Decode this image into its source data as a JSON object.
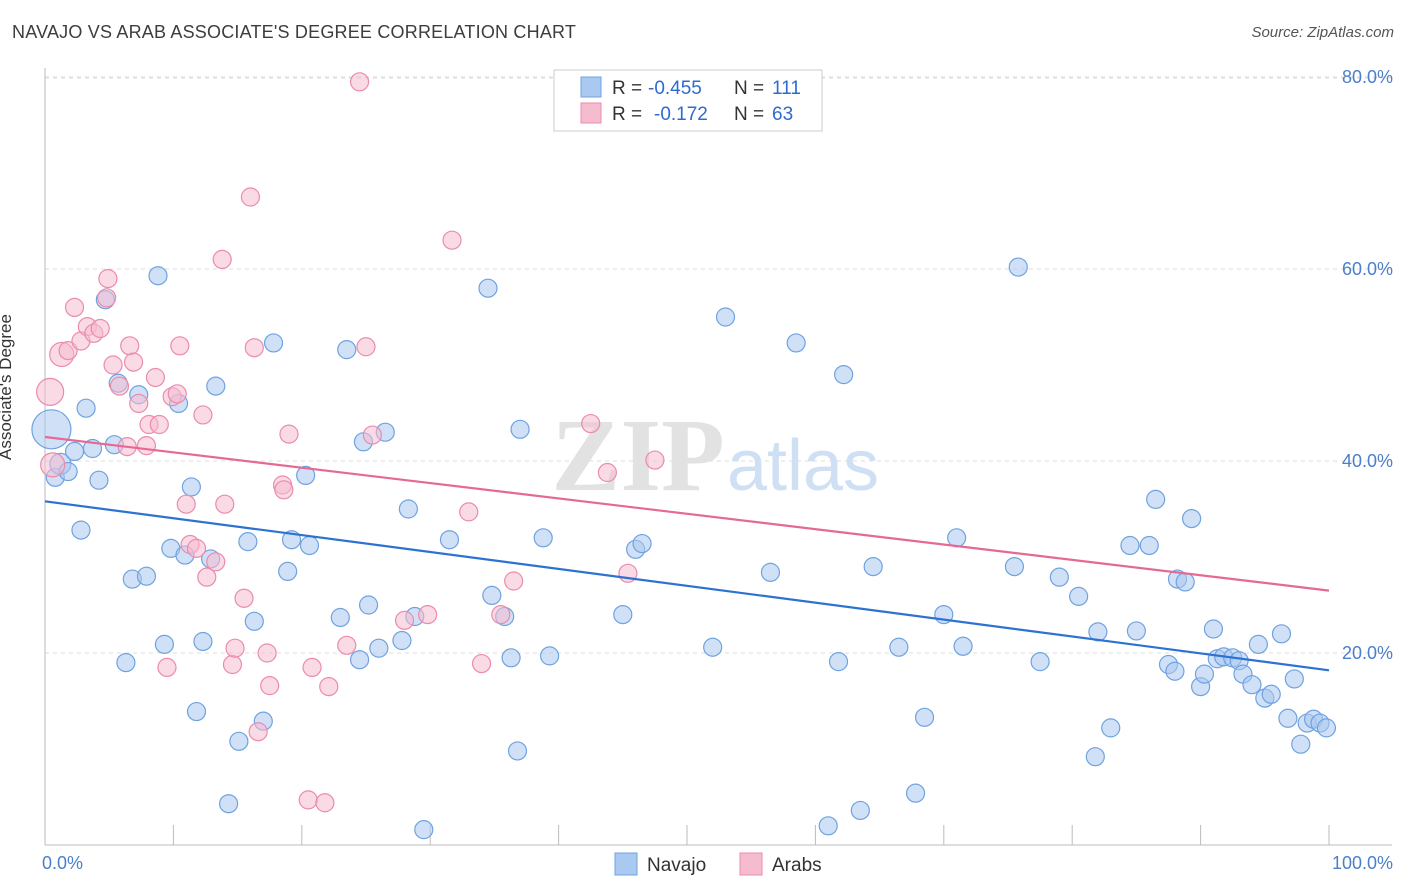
{
  "title": "NAVAJO VS ARAB ASSOCIATE'S DEGREE CORRELATION CHART",
  "source": "Source: ZipAtlas.com",
  "watermark": {
    "zip": "ZIP",
    "atlas": "atlas"
  },
  "colors": {
    "navajo_fill": "#a9c9f1",
    "navajo_stroke": "#6fa2e0",
    "navajo_line": "#2d72d2",
    "arab_fill": "#f5bcd0",
    "arab_stroke": "#eb8bad",
    "arab_line": "#e46a94",
    "axis_text": "#4a7fcb",
    "grid": "#dddddd"
  },
  "legend": {
    "rows": [
      {
        "r_label": "R = ",
        "r_value": "-0.455",
        "n_label": "N = ",
        "n_value": "111"
      },
      {
        "r_label": "R = ",
        "r_value": "-0.172",
        "n_label": "N = ",
        "n_value": "63"
      }
    ]
  },
  "bottom_legend": [
    "Navajo",
    "Arabs"
  ],
  "chart_data": {
    "type": "scatter",
    "title": "NAVAJO VS ARAB ASSOCIATE'S DEGREE CORRELATION CHART",
    "xlabel": "",
    "ylabel": "Associate's Degree",
    "xlim": [
      0,
      100
    ],
    "ylim": [
      0,
      83
    ],
    "x_tick_labels": [
      "0.0%",
      "100.0%"
    ],
    "y_ticks": [
      20,
      40,
      60,
      80
    ],
    "y_tick_labels": [
      "20.0%",
      "40.0%",
      "60.0%",
      "80.0%"
    ],
    "grid": true,
    "series": [
      {
        "name": "Navajo",
        "trend": {
          "x": [
            0,
            100
          ],
          "y": [
            35.8,
            18.2
          ]
        },
        "points": [
          [
            0.5,
            43.3,
            26
          ],
          [
            0.8,
            38.3,
            12
          ],
          [
            1.2,
            39.7,
            14
          ],
          [
            1.8,
            38.9,
            12
          ],
          [
            2.3,
            41.0,
            12
          ],
          [
            2.8,
            32.8,
            12
          ],
          [
            3.2,
            45.5,
            12
          ],
          [
            3.7,
            41.3,
            12
          ],
          [
            4.2,
            38.0,
            12
          ],
          [
            4.7,
            56.8,
            12
          ],
          [
            5.4,
            41.7,
            12
          ],
          [
            5.7,
            48.1,
            12
          ],
          [
            6.3,
            19.0,
            12
          ],
          [
            6.8,
            27.7,
            12
          ],
          [
            7.3,
            46.9,
            12
          ],
          [
            7.9,
            28.0,
            12
          ],
          [
            8.8,
            59.3,
            12
          ],
          [
            9.3,
            20.9,
            12
          ],
          [
            9.8,
            30.9,
            12
          ],
          [
            10.4,
            46.0,
            12
          ],
          [
            10.9,
            30.2,
            12
          ],
          [
            11.4,
            37.3,
            12
          ],
          [
            11.8,
            13.9,
            12
          ],
          [
            12.3,
            21.2,
            12
          ],
          [
            12.9,
            29.8,
            12
          ],
          [
            13.3,
            47.8,
            12
          ],
          [
            14.3,
            4.3,
            12
          ],
          [
            15.1,
            10.8,
            12
          ],
          [
            15.8,
            31.6,
            12
          ],
          [
            16.3,
            23.3,
            12
          ],
          [
            17.0,
            12.9,
            12
          ],
          [
            17.8,
            52.3,
            12
          ],
          [
            18.9,
            28.5,
            12
          ],
          [
            19.2,
            31.8,
            12
          ],
          [
            20.3,
            38.5,
            12
          ],
          [
            20.6,
            31.2,
            12
          ],
          [
            23.0,
            23.7,
            12
          ],
          [
            23.5,
            51.6,
            12
          ],
          [
            24.5,
            19.3,
            12
          ],
          [
            24.8,
            42.0,
            12
          ],
          [
            25.2,
            25.0,
            12
          ],
          [
            26.0,
            20.5,
            12
          ],
          [
            26.5,
            43.0,
            12
          ],
          [
            27.8,
            21.3,
            12
          ],
          [
            28.3,
            35.0,
            12
          ],
          [
            28.8,
            23.8,
            12
          ],
          [
            29.5,
            1.6,
            12
          ],
          [
            31.5,
            31.8,
            12
          ],
          [
            34.5,
            58.0,
            12
          ],
          [
            34.8,
            26.0,
            12
          ],
          [
            35.8,
            23.8,
            12
          ],
          [
            36.3,
            19.5,
            12
          ],
          [
            36.8,
            9.8,
            12
          ],
          [
            37.0,
            43.3,
            12
          ],
          [
            38.8,
            32.0,
            12
          ],
          [
            39.3,
            19.7,
            12
          ],
          [
            45.0,
            24.0,
            12
          ],
          [
            46.0,
            30.8,
            12
          ],
          [
            46.5,
            31.4,
            12
          ],
          [
            52.0,
            20.6,
            12
          ],
          [
            53.0,
            55.0,
            12
          ],
          [
            56.5,
            28.4,
            12
          ],
          [
            58.5,
            52.3,
            12
          ],
          [
            61.0,
            2.0,
            12
          ],
          [
            61.8,
            19.1,
            12
          ],
          [
            62.2,
            49.0,
            12
          ],
          [
            63.5,
            3.6,
            12
          ],
          [
            64.5,
            29.0,
            12
          ],
          [
            66.5,
            20.6,
            12
          ],
          [
            67.8,
            5.4,
            12
          ],
          [
            68.5,
            13.3,
            12
          ],
          [
            70.0,
            24.0,
            12
          ],
          [
            71.0,
            32.0,
            12
          ],
          [
            71.5,
            20.7,
            12
          ],
          [
            75.5,
            29.0,
            12
          ],
          [
            75.8,
            60.2,
            12
          ],
          [
            77.5,
            19.1,
            12
          ],
          [
            79.0,
            27.9,
            12
          ],
          [
            80.5,
            25.9,
            12
          ],
          [
            81.8,
            9.2,
            12
          ],
          [
            82.0,
            22.2,
            12
          ],
          [
            83.0,
            12.2,
            12
          ],
          [
            84.5,
            31.2,
            12
          ],
          [
            85.0,
            22.3,
            12
          ],
          [
            86.0,
            31.2,
            12
          ],
          [
            86.5,
            36.0,
            12
          ],
          [
            87.5,
            18.8,
            12
          ],
          [
            88.0,
            18.1,
            12
          ],
          [
            88.2,
            27.7,
            12
          ],
          [
            88.8,
            27.4,
            12
          ],
          [
            89.3,
            34.0,
            12
          ],
          [
            90.0,
            16.5,
            12
          ],
          [
            90.3,
            17.8,
            12
          ],
          [
            91.0,
            22.5,
            12
          ],
          [
            91.3,
            19.4,
            12
          ],
          [
            91.8,
            19.6,
            12
          ],
          [
            92.5,
            19.5,
            12
          ],
          [
            93.0,
            19.2,
            12
          ],
          [
            93.3,
            17.8,
            12
          ],
          [
            94.0,
            16.7,
            12
          ],
          [
            94.5,
            20.9,
            12
          ],
          [
            95.0,
            15.3,
            12
          ],
          [
            95.5,
            15.7,
            12
          ],
          [
            96.3,
            22.0,
            12
          ],
          [
            96.8,
            13.2,
            12
          ],
          [
            97.3,
            17.3,
            12
          ],
          [
            97.8,
            10.5,
            12
          ],
          [
            98.3,
            12.7,
            12
          ],
          [
            98.8,
            13.1,
            12
          ],
          [
            99.3,
            12.7,
            12
          ],
          [
            99.8,
            12.2,
            12
          ]
        ]
      },
      {
        "name": "Arabs",
        "trend": {
          "x": [
            0,
            100
          ],
          "y": [
            42.5,
            26.5
          ]
        },
        "points": [
          [
            0.4,
            47.2,
            18
          ],
          [
            0.6,
            39.6,
            16
          ],
          [
            1.3,
            51.1,
            16
          ],
          [
            1.8,
            51.5,
            12
          ],
          [
            2.3,
            56.0,
            12
          ],
          [
            2.8,
            52.5,
            12
          ],
          [
            3.3,
            54.0,
            12
          ],
          [
            3.8,
            53.3,
            12
          ],
          [
            4.3,
            53.8,
            12
          ],
          [
            4.8,
            57.0,
            12
          ],
          [
            4.9,
            59.0,
            12
          ],
          [
            5.3,
            50.0,
            12
          ],
          [
            5.8,
            47.8,
            12
          ],
          [
            6.4,
            41.5,
            12
          ],
          [
            6.6,
            52.0,
            12
          ],
          [
            6.9,
            50.3,
            12
          ],
          [
            7.3,
            46.0,
            12
          ],
          [
            7.9,
            41.6,
            12
          ],
          [
            8.1,
            43.8,
            12
          ],
          [
            8.6,
            48.7,
            12
          ],
          [
            8.9,
            43.8,
            12
          ],
          [
            9.5,
            18.5,
            12
          ],
          [
            9.9,
            46.7,
            12
          ],
          [
            10.3,
            47.0,
            12
          ],
          [
            10.5,
            52.0,
            12
          ],
          [
            11.0,
            35.5,
            12
          ],
          [
            11.3,
            31.3,
            12
          ],
          [
            11.8,
            30.9,
            12
          ],
          [
            12.3,
            44.8,
            12
          ],
          [
            12.6,
            27.9,
            12
          ],
          [
            13.3,
            29.5,
            12
          ],
          [
            13.8,
            61.0,
            12
          ],
          [
            14.0,
            35.5,
            12
          ],
          [
            14.6,
            18.8,
            12
          ],
          [
            14.8,
            20.5,
            12
          ],
          [
            15.5,
            25.7,
            12
          ],
          [
            16.0,
            67.5,
            12
          ],
          [
            16.3,
            51.8,
            12
          ],
          [
            16.6,
            11.8,
            12
          ],
          [
            17.3,
            20.0,
            12
          ],
          [
            17.5,
            16.6,
            12
          ],
          [
            18.5,
            37.5,
            12
          ],
          [
            18.6,
            37.0,
            12
          ],
          [
            19.0,
            42.8,
            12
          ],
          [
            20.5,
            4.7,
            12
          ],
          [
            20.8,
            18.5,
            12
          ],
          [
            21.8,
            4.4,
            12
          ],
          [
            22.1,
            16.5,
            12
          ],
          [
            23.5,
            20.8,
            12
          ],
          [
            24.5,
            79.5,
            12
          ],
          [
            25.0,
            51.9,
            12
          ],
          [
            25.5,
            42.7,
            12
          ],
          [
            28.0,
            23.4,
            12
          ],
          [
            29.8,
            24.0,
            12
          ],
          [
            31.7,
            63.0,
            12
          ],
          [
            33.0,
            34.7,
            12
          ],
          [
            34.0,
            18.9,
            12
          ],
          [
            35.5,
            24.0,
            12
          ],
          [
            36.5,
            27.5,
            12
          ],
          [
            42.5,
            43.9,
            12
          ],
          [
            43.8,
            38.8,
            12
          ],
          [
            45.4,
            28.3,
            12
          ],
          [
            47.5,
            40.1,
            12
          ]
        ]
      }
    ]
  }
}
